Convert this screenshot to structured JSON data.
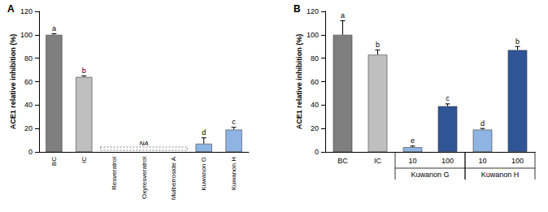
{
  "chart_data": [
    {
      "type": "bar",
      "title": "A",
      "y_label": "ACE1 relative inhibition (%)",
      "categories": [
        "BC",
        "IC",
        "Resveratrol",
        "Oxyresveratrol",
        "Mulberroside A",
        "Kuwanon G",
        "Kuwanon H"
      ],
      "values": [
        100,
        64,
        null,
        null,
        null,
        7,
        19
      ],
      "errors": [
        1,
        1,
        null,
        null,
        null,
        5,
        2
      ],
      "letters": [
        "a",
        "b",
        null,
        null,
        null,
        "d",
        "c"
      ],
      "colors": [
        "#7f7f7f",
        "#bfbfbf",
        "#8eb4e3",
        "#8eb4e3",
        "#8eb4e3",
        "#8eb4e3",
        "#8eb4e3"
      ],
      "annotation": {
        "text": "NA",
        "from": 2,
        "to": 4
      },
      "ylim": [
        0,
        120
      ],
      "yticks": [
        0,
        20,
        40,
        60,
        80,
        100,
        120
      ]
    },
    {
      "type": "bar",
      "title": "B",
      "y_label": "ACE1 relative inhibition (%)",
      "categories": [
        "BC",
        "IC",
        "10",
        "100",
        "10",
        "100"
      ],
      "values": [
        100,
        83,
        4,
        39,
        19,
        87
      ],
      "errors": [
        12,
        4,
        1,
        2,
        1,
        3
      ],
      "letters": [
        "a",
        "b",
        "e",
        "c",
        "d",
        "b"
      ],
      "colors": [
        "#7f7f7f",
        "#bfbfbf",
        "#8eb4e3",
        "#2f5597",
        "#8eb4e3",
        "#2f5597"
      ],
      "groups": [
        {
          "label": "Kuwanon G",
          "from": 2,
          "to": 3
        },
        {
          "label": "Kuwanon H",
          "from": 4,
          "to": 5
        }
      ],
      "ylim": [
        0,
        120
      ],
      "yticks": [
        0,
        20,
        40,
        60,
        80,
        100,
        120
      ]
    }
  ]
}
